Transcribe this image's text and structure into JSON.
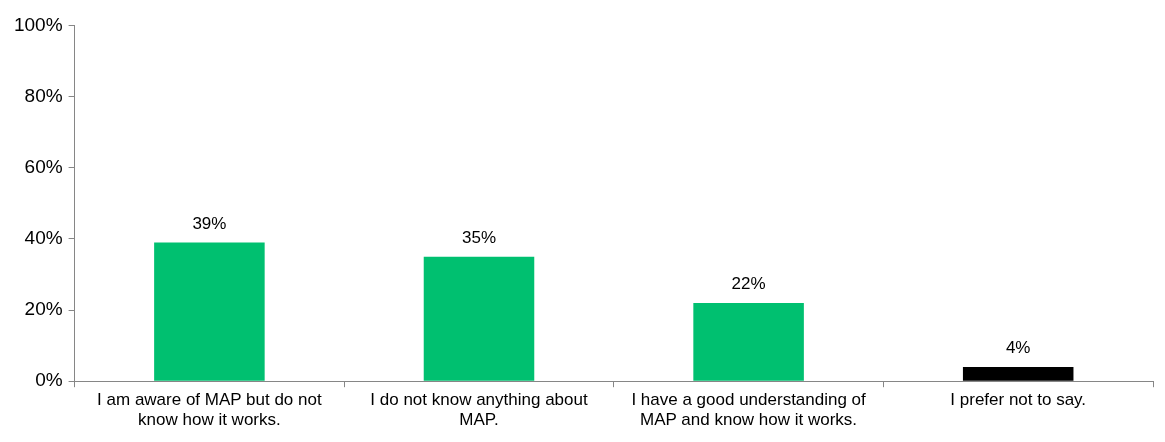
{
  "chart_data": {
    "type": "bar",
    "categories": [
      "I am aware of MAP but do not know how it works.",
      "I do not know anything about MAP.",
      "I have a good understanding of MAP and know how it works.",
      "I prefer not to say."
    ],
    "values": [
      39,
      35,
      22,
      4
    ],
    "colors": [
      "#00c070",
      "#00c070",
      "#00c070",
      "#000000"
    ],
    "value_labels": [
      "39%",
      "35%",
      "22%",
      "4%"
    ],
    "ylim": [
      0,
      100
    ],
    "yticks": [
      {
        "value": 0,
        "label": "0%"
      },
      {
        "value": 20,
        "label": "20%"
      },
      {
        "value": 40,
        "label": "40%"
      },
      {
        "value": 60,
        "label": "60%"
      },
      {
        "value": 80,
        "label": "80%"
      },
      {
        "value": 100,
        "label": "100%"
      }
    ],
    "grid": false,
    "legend": false
  }
}
